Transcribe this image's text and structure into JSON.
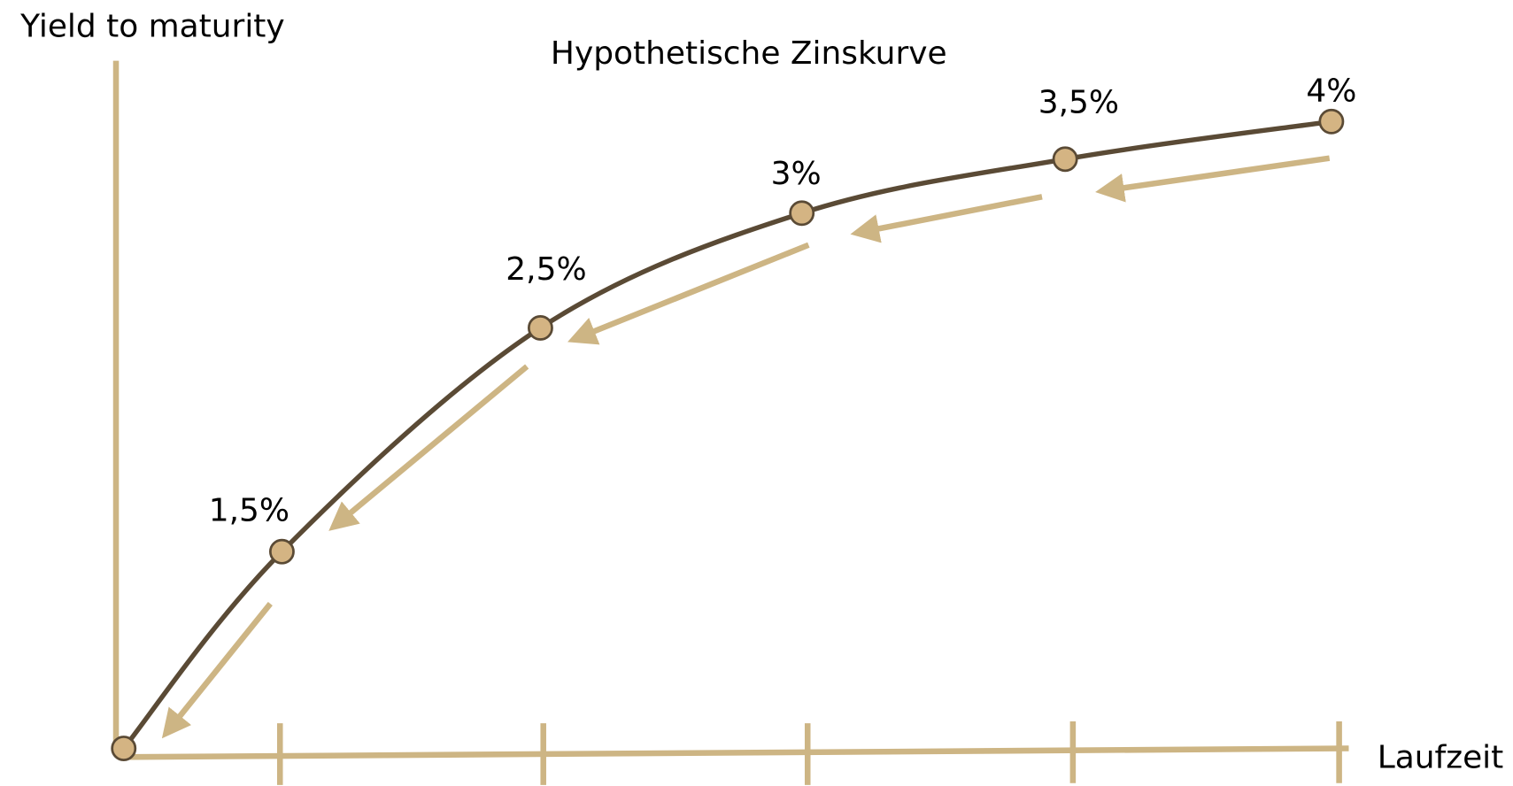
{
  "title": "Hypothetische Zinskurve",
  "y_axis_label": "Yield to maturity",
  "x_axis_label": "Laufzeit",
  "point_labels": [
    "1,5%",
    "2,5%",
    "3%",
    "3,5%",
    "4%"
  ]
}
